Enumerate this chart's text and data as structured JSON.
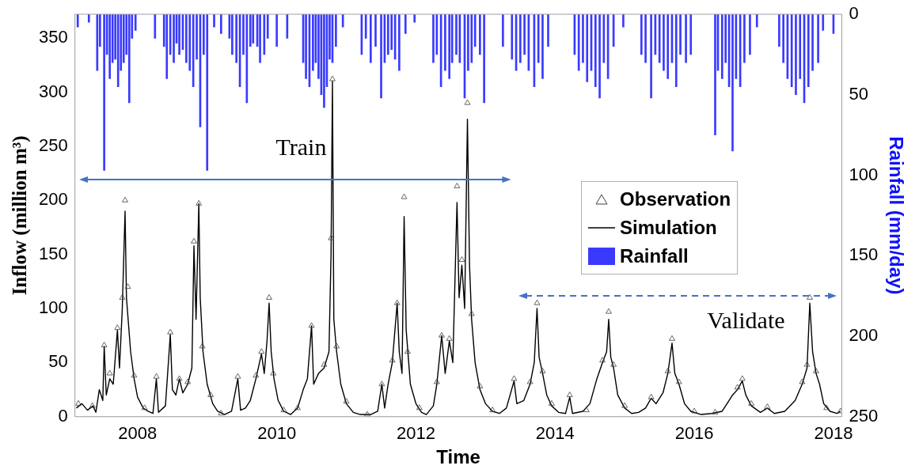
{
  "chart_data": {
    "type": "line",
    "xlabel": "Time",
    "ylabel": "Inflow (million m³)",
    "y2label": "Rainfall (mm/day)",
    "xlim": [
      2007.1,
      2018.12
    ],
    "xticks": [
      2008,
      2010,
      2012,
      2014,
      2016,
      2018
    ],
    "ylim": [
      0,
      372
    ],
    "yticks": [
      0,
      50,
      100,
      150,
      200,
      250,
      300,
      350
    ],
    "y2lim": [
      250,
      0
    ],
    "y2ticks": [
      0,
      50,
      100,
      150,
      200,
      250
    ],
    "legend": "right",
    "annotations": [
      "Train",
      "Validate"
    ],
    "series": [
      {
        "name": "Observation",
        "type": "scatter",
        "marker": "triangle",
        "color": "#404040",
        "x": [
          2007.15,
          2007.35,
          2007.52,
          2007.6,
          2007.71,
          2007.78,
          2007.82,
          2007.86,
          2007.95,
          2008.1,
          2008.27,
          2008.47,
          2008.6,
          2008.72,
          2008.81,
          2008.88,
          2008.93,
          2009.05,
          2009.2,
          2009.44,
          2009.7,
          2009.78,
          2009.89,
          2009.95,
          2010.1,
          2010.3,
          2010.5,
          2010.68,
          2010.78,
          2010.8,
          2010.86,
          2011.0,
          2011.3,
          2011.51,
          2011.66,
          2011.73,
          2011.83,
          2011.88,
          2012.05,
          2012.3,
          2012.37,
          2012.48,
          2012.59,
          2012.66,
          2012.74,
          2012.8,
          2012.92,
          2013.1,
          2013.41,
          2013.64,
          2013.74,
          2013.82,
          2013.95,
          2014.21,
          2014.45,
          2014.68,
          2014.77,
          2014.84,
          2015.0,
          2015.38,
          2015.62,
          2015.68,
          2015.78,
          2016.0,
          2016.3,
          2016.62,
          2016.69,
          2016.82,
          2017.05,
          2017.55,
          2017.62,
          2017.66,
          2017.75,
          2017.9,
          2018.1
        ],
        "values": [
          12,
          10,
          66,
          40,
          82,
          110,
          200,
          120,
          38,
          8,
          37,
          78,
          35,
          32,
          162,
          197,
          65,
          20,
          3,
          37,
          38,
          60,
          110,
          40,
          6,
          8,
          84,
          48,
          165,
          312,
          65,
          14,
          2,
          30,
          52,
          105,
          203,
          60,
          8,
          32,
          75,
          72,
          213,
          145,
          290,
          95,
          28,
          6,
          35,
          32,
          105,
          42,
          12,
          20,
          6,
          52,
          97,
          48,
          10,
          18,
          42,
          72,
          32,
          5,
          4,
          27,
          35,
          12,
          9,
          32,
          48,
          110,
          42,
          8,
          5
        ]
      },
      {
        "name": "Simulation",
        "marker": "none",
        "color": "#000000",
        "x": [
          2007.12,
          2007.2,
          2007.28,
          2007.36,
          2007.4,
          2007.45,
          2007.5,
          2007.52,
          2007.55,
          2007.6,
          2007.65,
          2007.71,
          2007.74,
          2007.78,
          2007.82,
          2007.84,
          2007.87,
          2007.9,
          2007.95,
          2008.0,
          2008.08,
          2008.15,
          2008.22,
          2008.27,
          2008.3,
          2008.4,
          2008.47,
          2008.5,
          2008.55,
          2008.6,
          2008.65,
          2008.72,
          2008.78,
          2008.81,
          2008.84,
          2008.88,
          2008.9,
          2008.94,
          2009.0,
          2009.08,
          2009.15,
          2009.25,
          2009.35,
          2009.44,
          2009.48,
          2009.55,
          2009.62,
          2009.7,
          2009.78,
          2009.82,
          2009.86,
          2009.89,
          2009.92,
          2009.96,
          2010.02,
          2010.1,
          2010.2,
          2010.3,
          2010.38,
          2010.44,
          2010.5,
          2010.53,
          2010.6,
          2010.68,
          2010.75,
          2010.78,
          2010.8,
          2010.82,
          2010.86,
          2010.92,
          2011.0,
          2011.1,
          2011.2,
          2011.35,
          2011.45,
          2011.51,
          2011.55,
          2011.6,
          2011.66,
          2011.73,
          2011.76,
          2011.8,
          2011.83,
          2011.86,
          2011.92,
          2012.0,
          2012.08,
          2012.15,
          2012.25,
          2012.3,
          2012.37,
          2012.42,
          2012.48,
          2012.53,
          2012.59,
          2012.62,
          2012.66,
          2012.7,
          2012.74,
          2012.77,
          2012.8,
          2012.85,
          2012.92,
          2013.0,
          2013.1,
          2013.2,
          2013.3,
          2013.41,
          2013.45,
          2013.55,
          2013.64,
          2013.7,
          2013.74,
          2013.77,
          2013.82,
          2013.88,
          2013.95,
          2014.05,
          2014.15,
          2014.21,
          2014.25,
          2014.4,
          2014.5,
          2014.6,
          2014.68,
          2014.74,
          2014.77,
          2014.8,
          2014.84,
          2014.9,
          2015.0,
          2015.1,
          2015.2,
          2015.3,
          2015.38,
          2015.45,
          2015.55,
          2015.62,
          2015.68,
          2015.72,
          2015.78,
          2015.86,
          2015.95,
          2016.1,
          2016.25,
          2016.4,
          2016.55,
          2016.62,
          2016.69,
          2016.74,
          2016.82,
          2016.95,
          2017.05,
          2017.15,
          2017.3,
          2017.45,
          2017.55,
          2017.62,
          2017.66,
          2017.7,
          2017.75,
          2017.8,
          2017.86,
          2017.95,
          2018.05,
          2018.1
        ],
        "values": [
          8,
          12,
          6,
          10,
          4,
          25,
          15,
          65,
          20,
          35,
          30,
          80,
          45,
          100,
          190,
          110,
          85,
          60,
          35,
          18,
          8,
          5,
          3,
          35,
          4,
          10,
          76,
          25,
          20,
          35,
          22,
          30,
          45,
          158,
          90,
          197,
          110,
          60,
          30,
          12,
          5,
          2,
          5,
          35,
          6,
          8,
          15,
          35,
          58,
          40,
          70,
          105,
          60,
          35,
          15,
          5,
          2,
          8,
          25,
          35,
          84,
          30,
          40,
          45,
          60,
          150,
          310,
          90,
          60,
          30,
          12,
          4,
          2,
          2,
          5,
          30,
          8,
          30,
          50,
          105,
          60,
          40,
          185,
          80,
          30,
          12,
          4,
          2,
          10,
          30,
          75,
          40,
          70,
          50,
          198,
          110,
          140,
          100,
          275,
          140,
          90,
          50,
          25,
          12,
          5,
          3,
          8,
          33,
          12,
          15,
          30,
          50,
          100,
          55,
          40,
          20,
          10,
          4,
          3,
          18,
          3,
          5,
          12,
          35,
          50,
          60,
          90,
          55,
          45,
          20,
          8,
          3,
          4,
          8,
          17,
          12,
          22,
          40,
          68,
          40,
          30,
          12,
          5,
          2,
          3,
          5,
          20,
          25,
          33,
          20,
          10,
          4,
          8,
          3,
          5,
          15,
          30,
          45,
          105,
          60,
          40,
          30,
          12,
          5,
          3,
          5
        ]
      },
      {
        "name": "Rainfall",
        "type": "bar",
        "axis": "y2",
        "color": "#3a3aff",
        "x": [
          2007.14,
          2007.3,
          2007.42,
          2007.46,
          2007.52,
          2007.56,
          2007.6,
          2007.64,
          2007.68,
          2007.72,
          2007.76,
          2007.8,
          2007.84,
          2007.88,
          2007.92,
          2007.97,
          2008.25,
          2008.38,
          2008.42,
          2008.47,
          2008.52,
          2008.56,
          2008.6,
          2008.65,
          2008.7,
          2008.75,
          2008.8,
          2008.85,
          2008.9,
          2008.95,
          2009.0,
          2009.1,
          2009.2,
          2009.32,
          2009.36,
          2009.42,
          2009.47,
          2009.52,
          2009.57,
          2009.62,
          2009.66,
          2009.72,
          2009.76,
          2009.82,
          2009.87,
          2010.0,
          2010.15,
          2010.38,
          2010.42,
          2010.47,
          2010.52,
          2010.56,
          2010.6,
          2010.64,
          2010.68,
          2010.72,
          2010.76,
          2010.8,
          2010.85,
          2010.95,
          2011.22,
          2011.28,
          2011.35,
          2011.42,
          2011.5,
          2011.55,
          2011.6,
          2011.65,
          2011.7,
          2011.76,
          2011.85,
          2011.98,
          2012.25,
          2012.3,
          2012.36,
          2012.42,
          2012.48,
          2012.52,
          2012.58,
          2012.63,
          2012.7,
          2012.75,
          2012.8,
          2012.85,
          2012.92,
          2012.98,
          2013.25,
          2013.38,
          2013.44,
          2013.5,
          2013.56,
          2013.62,
          2013.7,
          2013.76,
          2013.82,
          2013.9,
          2014.28,
          2014.34,
          2014.4,
          2014.46,
          2014.52,
          2014.58,
          2014.64,
          2014.7,
          2014.76,
          2014.84,
          2014.98,
          2015.24,
          2015.3,
          2015.38,
          2015.44,
          2015.5,
          2015.56,
          2015.62,
          2015.68,
          2015.74,
          2015.8,
          2015.88,
          2015.95,
          2016.3,
          2016.34,
          2016.4,
          2016.45,
          2016.5,
          2016.55,
          2016.6,
          2016.66,
          2016.72,
          2016.8,
          2016.9,
          2017.22,
          2017.28,
          2017.34,
          2017.4,
          2017.46,
          2017.52,
          2017.58,
          2017.64,
          2017.7,
          2017.78,
          2017.85,
          2018.0
        ],
        "values": [
          8,
          5,
          35,
          20,
          97,
          25,
          40,
          30,
          28,
          45,
          35,
          30,
          25,
          55,
          15,
          10,
          15,
          20,
          40,
          25,
          30,
          18,
          25,
          22,
          30,
          35,
          45,
          28,
          70,
          25,
          97,
          8,
          12,
          15,
          25,
          30,
          45,
          25,
          55,
          20,
          18,
          20,
          30,
          25,
          15,
          20,
          15,
          30,
          40,
          45,
          35,
          30,
          40,
          50,
          58,
          45,
          28,
          30,
          20,
          8,
          25,
          15,
          30,
          20,
          52,
          30,
          25,
          22,
          28,
          35,
          12,
          5,
          30,
          25,
          45,
          35,
          40,
          30,
          25,
          30,
          52,
          35,
          30,
          20,
          25,
          55,
          20,
          28,
          35,
          30,
          25,
          35,
          45,
          30,
          40,
          20,
          25,
          35,
          30,
          42,
          35,
          45,
          52,
          30,
          40,
          20,
          8,
          25,
          30,
          52,
          25,
          30,
          35,
          40,
          30,
          45,
          25,
          30,
          25,
          75,
          35,
          40,
          30,
          45,
          85,
          40,
          45,
          30,
          25,
          8,
          20,
          30,
          40,
          45,
          50,
          40,
          55,
          45,
          35,
          30,
          10,
          12
        ]
      }
    ]
  }
}
